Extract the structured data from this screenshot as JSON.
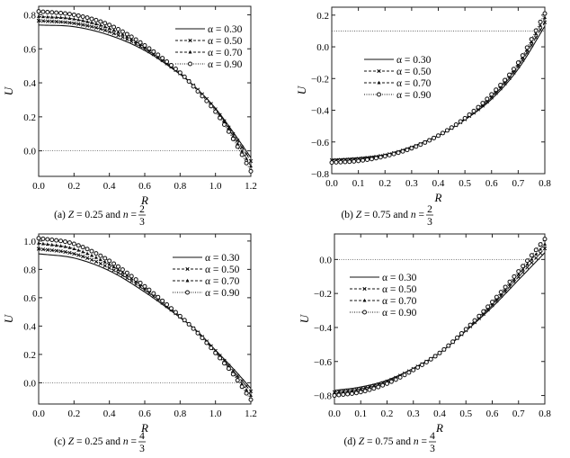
{
  "chart_data": [
    {
      "type": "line",
      "panel": "a",
      "caption": {
        "prefix": "(a) ",
        "var": "Z",
        "mid": " = 0.25 and ",
        "n": "n",
        "eq": " =",
        "num": "2",
        "den": "3"
      },
      "xlabel": "R",
      "ylabel": "U",
      "xlim": [
        0,
        1.2
      ],
      "ylim": [
        -0.15,
        0.85
      ],
      "xticks": [
        "0.0",
        "0.2",
        "0.4",
        "0.6",
        "0.8",
        "1.0",
        "1.2"
      ],
      "yticks": [
        "0.0",
        "0.2",
        "0.4",
        "0.6",
        "0.8"
      ],
      "reference_line": 0.0,
      "legend": "top-right",
      "x": [
        0,
        0.2,
        0.4,
        0.6,
        0.8,
        0.9,
        1.0,
        1.1,
        1.2
      ],
      "series": [
        {
          "name": "α = 0.30",
          "style": "solid",
          "marker": "none",
          "values": [
            0.74,
            0.73,
            0.68,
            0.59,
            0.45,
            0.36,
            0.25,
            0.11,
            -0.04
          ]
        },
        {
          "name": "α = 0.50",
          "style": "dashed",
          "marker": "cross",
          "values": [
            0.765,
            0.75,
            0.7,
            0.6,
            0.455,
            0.36,
            0.245,
            0.1,
            -0.06
          ]
        },
        {
          "name": "α = 0.70",
          "style": "dashed",
          "marker": "triangle",
          "values": [
            0.79,
            0.775,
            0.72,
            0.61,
            0.458,
            0.355,
            0.24,
            0.085,
            -0.09
          ]
        },
        {
          "name": "α = 0.90",
          "style": "dotted",
          "marker": "circle",
          "values": [
            0.82,
            0.8,
            0.74,
            0.62,
            0.46,
            0.35,
            0.23,
            0.07,
            -0.12
          ]
        }
      ]
    },
    {
      "type": "line",
      "panel": "b",
      "caption": {
        "prefix": "(b) ",
        "var": "Z",
        "mid": " = 0.75 and ",
        "n": "n",
        "eq": " =",
        "num": "2",
        "den": "3"
      },
      "xlabel": "R",
      "ylabel": "U",
      "xlim": [
        0,
        0.8
      ],
      "ylim": [
        -0.8,
        0.25
      ],
      "xticks": [
        "0.0",
        "0.1",
        "0.2",
        "0.3",
        "0.4",
        "0.5",
        "0.6",
        "0.7",
        "0.8"
      ],
      "yticks": [
        "−0.8",
        "−0.6",
        "−0.4",
        "−0.2",
        "0.0",
        "0.2"
      ],
      "reference_line": 0.1,
      "legend": "upper-left",
      "x": [
        0,
        0.1,
        0.2,
        0.3,
        0.4,
        0.5,
        0.6,
        0.7,
        0.8
      ],
      "series": [
        {
          "name": "α = 0.30",
          "style": "solid",
          "marker": "none",
          "values": [
            -0.71,
            -0.7,
            -0.68,
            -0.63,
            -0.56,
            -0.46,
            -0.33,
            -0.14,
            0.13
          ]
        },
        {
          "name": "α = 0.50",
          "style": "dashed",
          "marker": "cross",
          "values": [
            -0.715,
            -0.705,
            -0.683,
            -0.635,
            -0.56,
            -0.457,
            -0.32,
            -0.125,
            0.155
          ]
        },
        {
          "name": "α = 0.70",
          "style": "dashed",
          "marker": "triangle",
          "values": [
            -0.725,
            -0.712,
            -0.687,
            -0.638,
            -0.56,
            -0.453,
            -0.31,
            -0.11,
            0.185
          ]
        },
        {
          "name": "α = 0.90",
          "style": "dotted",
          "marker": "circle",
          "values": [
            -0.73,
            -0.72,
            -0.69,
            -0.64,
            -0.56,
            -0.45,
            -0.3,
            -0.1,
            0.21
          ]
        }
      ]
    },
    {
      "type": "line",
      "panel": "c",
      "caption": {
        "prefix": "(c) ",
        "var": "Z",
        "mid": " = 0.25 and ",
        "n": "n",
        "eq": " =",
        "num": "4",
        "den": "3"
      },
      "xlabel": "R",
      "ylabel": "U",
      "xlim": [
        0,
        1.2
      ],
      "ylim": [
        -0.15,
        1.05
      ],
      "xticks": [
        "0.0",
        "0.2",
        "0.4",
        "0.6",
        "0.8",
        "1.0",
        "1.2"
      ],
      "yticks": [
        "0.0",
        "0.2",
        "0.4",
        "0.6",
        "0.8",
        "1.0"
      ],
      "reference_line": 0.0,
      "legend": "top-right",
      "x": [
        0,
        0.2,
        0.4,
        0.6,
        0.8,
        0.9,
        1.0,
        1.1,
        1.2
      ],
      "series": [
        {
          "name": "α = 0.30",
          "style": "solid",
          "marker": "none",
          "values": [
            0.91,
            0.88,
            0.79,
            0.64,
            0.46,
            0.36,
            0.23,
            0.1,
            -0.04
          ]
        },
        {
          "name": "α = 0.50",
          "style": "dashed",
          "marker": "cross",
          "values": [
            0.945,
            0.91,
            0.81,
            0.655,
            0.465,
            0.355,
            0.225,
            0.085,
            -0.06
          ]
        },
        {
          "name": "α = 0.70",
          "style": "dashed",
          "marker": "triangle",
          "values": [
            0.985,
            0.945,
            0.835,
            0.67,
            0.47,
            0.35,
            0.215,
            0.07,
            -0.09
          ]
        },
        {
          "name": "α = 0.90",
          "style": "dotted",
          "marker": "circle",
          "values": [
            1.02,
            0.98,
            0.86,
            0.68,
            0.47,
            0.35,
            0.21,
            0.06,
            -0.12
          ]
        }
      ]
    },
    {
      "type": "line",
      "panel": "d",
      "caption": {
        "prefix": "(d) ",
        "var": "Z",
        "mid": " = 0.75 and ",
        "n": "n",
        "eq": " =",
        "num": "4",
        "den": "3"
      },
      "xlabel": "R",
      "ylabel": "U",
      "xlim": [
        0,
        0.8
      ],
      "ylim": [
        -0.85,
        0.15
      ],
      "xticks": [
        "0.0",
        "0.1",
        "0.2",
        "0.3",
        "0.4",
        "0.5",
        "0.6",
        "0.7",
        "0.8"
      ],
      "yticks": [
        "−0.8",
        "−0.6",
        "−0.4",
        "−0.2",
        "0.0"
      ],
      "reference_line": 0.0,
      "legend": "upper-left",
      "x": [
        0,
        0.1,
        0.2,
        0.3,
        0.4,
        0.5,
        0.6,
        0.7,
        0.8
      ],
      "series": [
        {
          "name": "α = 0.30",
          "style": "solid",
          "marker": "none",
          "values": [
            -0.77,
            -0.75,
            -0.71,
            -0.64,
            -0.55,
            -0.42,
            -0.28,
            -0.12,
            0.04
          ]
        },
        {
          "name": "α = 0.50",
          "style": "dashed",
          "marker": "cross",
          "values": [
            -0.78,
            -0.76,
            -0.717,
            -0.643,
            -0.55,
            -0.417,
            -0.27,
            -0.103,
            0.065
          ]
        },
        {
          "name": "α = 0.70",
          "style": "dashed",
          "marker": "triangle",
          "values": [
            -0.79,
            -0.77,
            -0.723,
            -0.647,
            -0.55,
            -0.413,
            -0.26,
            -0.087,
            0.09
          ]
        },
        {
          "name": "α = 0.90",
          "style": "dotted",
          "marker": "circle",
          "values": [
            -0.8,
            -0.78,
            -0.73,
            -0.65,
            -0.55,
            -0.41,
            -0.25,
            -0.07,
            0.12
          ]
        }
      ]
    }
  ]
}
